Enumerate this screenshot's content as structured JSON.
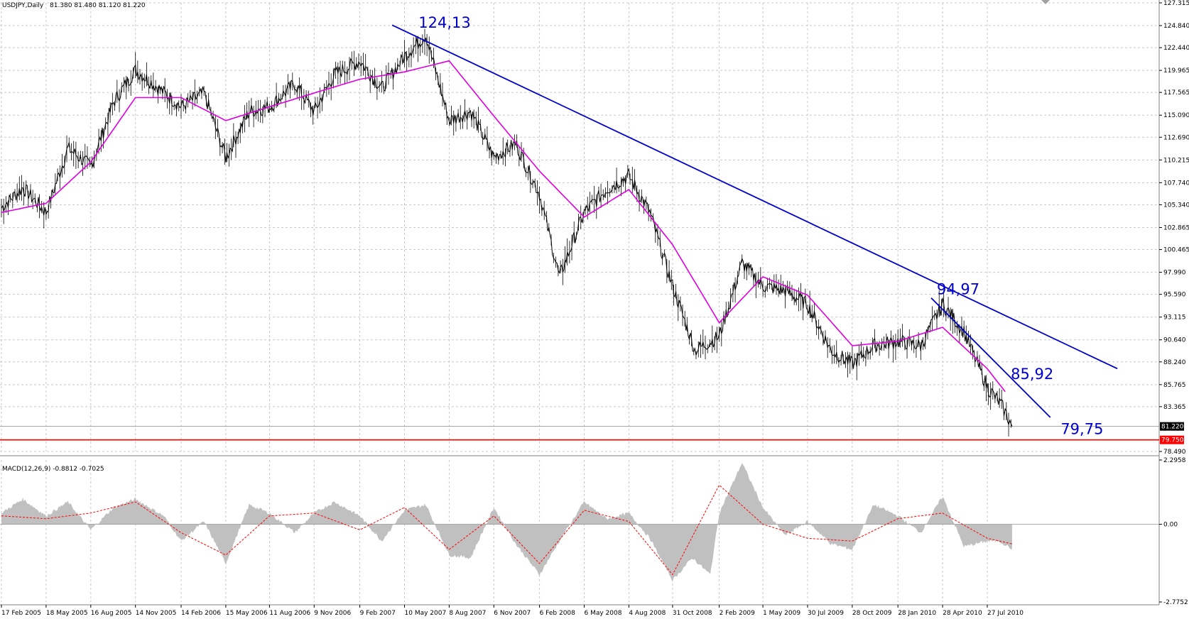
{
  "header": {
    "symbol": "USDJPY,Daily",
    "ohlc": "81.380 81.480 81.120 81.220"
  },
  "macd_header": "MACD(12,26,9) -0.8812 -0.7025",
  "colors": {
    "price": "#000000",
    "ma": "#e000e0",
    "trendline": "#0000cc",
    "support": "#ff0000",
    "histogram": "#c0c0c0",
    "signal": "#ff0000",
    "grid": "#c8c8c8",
    "current_price_badge": "#000000",
    "support_badge": "#ff0000"
  },
  "chart_data": [
    {
      "type": "line",
      "title": "USDJPY,Daily",
      "scale": "linear",
      "grid": true,
      "legend": "none",
      "x_dates": [
        "17 Feb 2005",
        "18 May 2005",
        "16 Aug 2005",
        "14 Nov 2005",
        "14 Feb 2006",
        "15 May 2006",
        "11 Aug 2006",
        "9 Nov 2006",
        "9 Feb 2007",
        "10 May 2007",
        "8 Aug 2007",
        "6 Nov 2007",
        "6 Feb 2008",
        "6 May 2008",
        "4 Aug 2008",
        "31 Oct 2008",
        "2 Feb 2009",
        "1 May 2009",
        "30 Jul 2009",
        "28 Oct 2009",
        "28 Jan 2010",
        "28 Apr 2010",
        "27 Jul 2010"
      ],
      "y_ticks": [
        "127.315",
        "124.840",
        "122.440",
        "119.965",
        "117.565",
        "115.090",
        "112.690",
        "110.215",
        "107.740",
        "105.340",
        "102.865",
        "100.465",
        "97.990",
        "95.590",
        "93.115",
        "90.640",
        "88.240",
        "85.765",
        "83.365",
        "78.490"
      ],
      "ylim": [
        78.49,
        127.315
      ],
      "series": [
        {
          "name": "",
          "role": "price",
          "x": [
            "2005-02-17",
            "2005-04-01",
            "2005-05-18",
            "2005-07-01",
            "2005-08-16",
            "2005-10-01",
            "2005-11-14",
            "2005-12-20",
            "2006-02-14",
            "2006-04-01",
            "2006-05-15",
            "2006-07-01",
            "2006-08-11",
            "2006-10-01",
            "2006-11-09",
            "2006-12-20",
            "2007-02-09",
            "2007-03-25",
            "2007-05-10",
            "2007-06-22",
            "2007-08-08",
            "2007-09-20",
            "2007-11-06",
            "2007-12-20",
            "2008-02-06",
            "2008-03-17",
            "2008-05-06",
            "2008-06-20",
            "2008-08-04",
            "2008-09-15",
            "2008-10-31",
            "2008-12-15",
            "2009-02-02",
            "2009-03-20",
            "2009-05-01",
            "2009-06-15",
            "2009-07-30",
            "2009-09-15",
            "2009-10-28",
            "2009-12-10",
            "2010-01-28",
            "2010-03-15",
            "2010-04-28",
            "2010-06-10",
            "2010-07-27",
            "2010-08-25",
            "2010-09-15"
          ],
          "values": [
            105.0,
            107.2,
            104.5,
            111.5,
            109.5,
            116.5,
            120.0,
            118.5,
            116.0,
            117.5,
            110.5,
            115.5,
            116.0,
            118.5,
            115.5,
            119.5,
            121.0,
            118.0,
            121.5,
            123.8,
            114.5,
            115.5,
            110.5,
            112.0,
            106.5,
            97.5,
            104.5,
            107.0,
            108.5,
            104.5,
            96.5,
            89.5,
            91.0,
            99.0,
            96.5,
            96.0,
            94.5,
            89.5,
            88.0,
            90.0,
            90.5,
            90.0,
            94.5,
            91.5,
            85.5,
            83.5,
            81.22
          ]
        },
        {
          "name": "",
          "role": "moving-average",
          "x": [
            "2005-02-17",
            "2005-05-18",
            "2005-08-16",
            "2005-11-14",
            "2006-02-14",
            "2006-05-15",
            "2006-08-11",
            "2006-11-09",
            "2007-02-09",
            "2007-05-10",
            "2007-08-08",
            "2007-11-06",
            "2008-02-06",
            "2008-05-06",
            "2008-08-04",
            "2008-10-31",
            "2009-02-02",
            "2009-05-01",
            "2009-07-30",
            "2009-10-28",
            "2010-01-28",
            "2010-04-28",
            "2010-07-27",
            "2010-09-01"
          ],
          "values": [
            104.5,
            105.5,
            110.0,
            117.0,
            117.0,
            114.5,
            116.0,
            117.5,
            119.0,
            119.8,
            121.0,
            115.0,
            109.0,
            104.0,
            107.0,
            101.0,
            92.5,
            97.5,
            95.5,
            90.0,
            90.5,
            92.0,
            87.5,
            85.0
          ]
        }
      ],
      "annotations": [
        {
          "text": "124,13",
          "date": "2007-05-24",
          "value": 124.13
        },
        {
          "text": "94,97",
          "date": "2010-04-05",
          "value": 94.97
        },
        {
          "text": "85,92",
          "date": "2010-09-01",
          "value": 85.92
        },
        {
          "text": "79,75",
          "date": "2011-04-01",
          "value": 79.75
        }
      ],
      "trendlines": [
        {
          "from": {
            "date": "2007-04-15",
            "value": 124.9
          },
          "to": {
            "date": "2011-04-15",
            "value": 87.5
          }
        },
        {
          "from": {
            "date": "2010-04-05",
            "value": 95.2
          },
          "to": {
            "date": "2010-12-01",
            "value": 82.2
          }
        }
      ],
      "horizontal_levels": [
        {
          "value": 79.75,
          "label": "79.750",
          "role": "support"
        },
        {
          "value": 81.22,
          "label": "81.220",
          "role": "current-price"
        }
      ]
    },
    {
      "type": "area",
      "title": "MACD(12,26,9) -0.8812 -0.7025",
      "ylim": [
        -2.7752,
        2.2958
      ],
      "y_ticks": [
        "2.2958",
        "0.00",
        "-2.7752"
      ],
      "series": [
        {
          "name": "",
          "role": "macd-histogram",
          "x": [
            "2005-02-17",
            "2005-04-01",
            "2005-05-18",
            "2005-07-01",
            "2005-08-16",
            "2005-10-01",
            "2005-11-14",
            "2006-01-10",
            "2006-02-14",
            "2006-04-01",
            "2006-05-15",
            "2006-07-01",
            "2006-08-11",
            "2006-10-01",
            "2006-11-09",
            "2006-12-20",
            "2007-02-09",
            "2007-03-25",
            "2007-05-10",
            "2007-06-22",
            "2007-08-08",
            "2007-09-20",
            "2007-11-06",
            "2007-12-20",
            "2008-02-06",
            "2008-03-17",
            "2008-05-06",
            "2008-06-20",
            "2008-08-04",
            "2008-09-15",
            "2008-10-31",
            "2008-12-10",
            "2009-01-15",
            "2009-02-02",
            "2009-03-20",
            "2009-05-01",
            "2009-06-15",
            "2009-07-30",
            "2009-09-15",
            "2009-10-28",
            "2009-12-10",
            "2010-01-28",
            "2010-03-15",
            "2010-04-28",
            "2010-06-10",
            "2010-07-27",
            "2010-08-20",
            "2010-09-15"
          ],
          "values": [
            0.4,
            0.9,
            0.3,
            0.8,
            -0.2,
            0.6,
            0.9,
            0.3,
            -0.6,
            0.1,
            -1.4,
            0.7,
            0.4,
            -0.3,
            0.4,
            0.8,
            0.3,
            -0.6,
            0.5,
            0.7,
            -1.1,
            -1.2,
            0.6,
            -0.7,
            -1.8,
            -0.6,
            0.8,
            0.2,
            0.4,
            -0.5,
            -2.0,
            -1.2,
            -1.8,
            0.4,
            2.2,
            0.6,
            -0.4,
            0.1,
            -0.7,
            -0.9,
            0.7,
            0.3,
            -0.3,
            1.0,
            -0.8,
            -0.6,
            -0.6,
            -0.88
          ]
        },
        {
          "name": "",
          "role": "signal",
          "x": [
            "2005-02-17",
            "2005-05-18",
            "2005-08-16",
            "2005-11-14",
            "2006-02-14",
            "2006-05-15",
            "2006-08-11",
            "2006-11-09",
            "2007-02-09",
            "2007-05-10",
            "2007-08-08",
            "2007-11-06",
            "2008-02-06",
            "2008-05-06",
            "2008-08-04",
            "2008-10-31",
            "2009-02-02",
            "2009-05-01",
            "2009-07-30",
            "2009-10-28",
            "2010-01-28",
            "2010-04-28",
            "2010-07-27",
            "2010-09-15"
          ],
          "values": [
            0.3,
            0.2,
            0.4,
            0.8,
            -0.3,
            -1.1,
            0.3,
            0.4,
            -0.2,
            0.6,
            -0.9,
            0.3,
            -1.4,
            0.5,
            0.1,
            -1.8,
            1.4,
            0.0,
            -0.5,
            -0.6,
            0.2,
            0.4,
            -0.5,
            -0.7
          ]
        }
      ]
    }
  ]
}
